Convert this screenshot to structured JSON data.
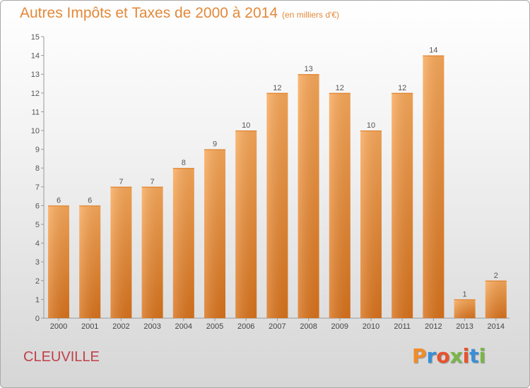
{
  "header": {
    "title": "Autres Impôts et Taxes de 2000 à 2014",
    "unit": "(en milliers d'€)"
  },
  "commune": "CLEUVILLE",
  "logo": {
    "text": "Proxiti",
    "letter_colors": [
      "#f28c28",
      "#3a8fd8",
      "#e8522c",
      "#7ab648",
      "#e8522c",
      "#3a8fd8",
      "#7ab648"
    ]
  },
  "chart_data": {
    "type": "bar",
    "categories": [
      "2000",
      "2001",
      "2002",
      "2003",
      "2004",
      "2005",
      "2006",
      "2007",
      "2008",
      "2009",
      "2010",
      "2011",
      "2012",
      "2013",
      "2014"
    ],
    "values": [
      6,
      6,
      7,
      7,
      8,
      9,
      10,
      12,
      13,
      12,
      10,
      12,
      14,
      1,
      2
    ],
    "data_labels": [
      "6",
      "6",
      "7",
      "7",
      "8",
      "9",
      "10",
      "12",
      "13",
      "12",
      "10",
      "12",
      "14",
      "1",
      "2"
    ],
    "ylim": [
      0,
      15
    ],
    "yticks": [
      "0",
      "1",
      "2",
      "3",
      "4",
      "5",
      "6",
      "7",
      "8",
      "9",
      "10",
      "11",
      "12",
      "13",
      "14",
      "15"
    ],
    "grid": false,
    "legend": "none",
    "bar_color_top": "#f9a95a",
    "bar_color_bottom": "#d9731c"
  }
}
